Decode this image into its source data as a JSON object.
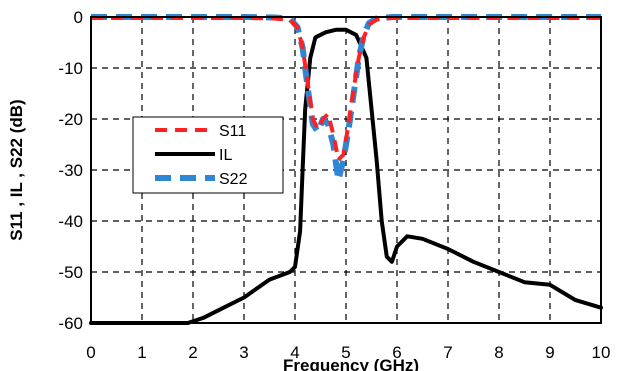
{
  "chart_data": {
    "type": "line",
    "xlabel": "Frequency (GHz)",
    "ylabel": "S11 , IL , S22 (dB)",
    "xlim": [
      0,
      10
    ],
    "ylim": [
      -60,
      0
    ],
    "x_ticks": [
      "0",
      "1",
      "2",
      "3",
      "4",
      "5",
      "6",
      "7",
      "8",
      "9",
      "10"
    ],
    "y_ticks": [
      "0",
      "-10",
      "-20",
      "-30",
      "-40",
      "-50",
      "-60"
    ],
    "grid": true,
    "legend_position": "middle-left",
    "series": [
      {
        "name": "S11",
        "color": "#ff2020",
        "style": "dashed",
        "points": [
          [
            0,
            -0.2
          ],
          [
            1,
            -0.2
          ],
          [
            2,
            -0.2
          ],
          [
            3,
            -0.2
          ],
          [
            3.6,
            -0.3
          ],
          [
            3.9,
            -0.5
          ],
          [
            4.05,
            -2
          ],
          [
            4.15,
            -6
          ],
          [
            4.25,
            -13
          ],
          [
            4.35,
            -20
          ],
          [
            4.45,
            -22
          ],
          [
            4.55,
            -20
          ],
          [
            4.65,
            -19
          ],
          [
            4.75,
            -23
          ],
          [
            4.85,
            -28
          ],
          [
            4.95,
            -27
          ],
          [
            5.05,
            -21
          ],
          [
            5.15,
            -14
          ],
          [
            5.25,
            -8
          ],
          [
            5.35,
            -4
          ],
          [
            5.45,
            -1.5
          ],
          [
            5.6,
            -0.5
          ],
          [
            5.9,
            -0.2
          ],
          [
            6.5,
            -0.2
          ],
          [
            8,
            -0.2
          ],
          [
            10,
            -0.2
          ]
        ]
      },
      {
        "name": "IL",
        "color": "#000000",
        "style": "solid",
        "points": [
          [
            0,
            -60
          ],
          [
            1,
            -60
          ],
          [
            1.9,
            -60
          ],
          [
            2.2,
            -59
          ],
          [
            2.6,
            -57
          ],
          [
            3,
            -55
          ],
          [
            3.5,
            -51.5
          ],
          [
            3.9,
            -50
          ],
          [
            4.0,
            -49
          ],
          [
            4.1,
            -42
          ],
          [
            4.15,
            -30
          ],
          [
            4.2,
            -18
          ],
          [
            4.3,
            -8
          ],
          [
            4.4,
            -4
          ],
          [
            4.6,
            -3
          ],
          [
            4.8,
            -2.5
          ],
          [
            5.0,
            -2.5
          ],
          [
            5.2,
            -3.5
          ],
          [
            5.4,
            -8
          ],
          [
            5.5,
            -18
          ],
          [
            5.6,
            -28
          ],
          [
            5.7,
            -40
          ],
          [
            5.8,
            -47
          ],
          [
            5.9,
            -48
          ],
          [
            6.0,
            -45
          ],
          [
            6.2,
            -43
          ],
          [
            6.5,
            -43.5
          ],
          [
            7,
            -45.5
          ],
          [
            7.5,
            -48
          ],
          [
            8,
            -50
          ],
          [
            8.5,
            -52
          ],
          [
            9,
            -52.5
          ],
          [
            9.5,
            -55.5
          ],
          [
            10,
            -57
          ]
        ]
      },
      {
        "name": "S22",
        "color": "#2e86d4",
        "style": "dashed",
        "points": [
          [
            0,
            0
          ],
          [
            1,
            0
          ],
          [
            2,
            0
          ],
          [
            3,
            0
          ],
          [
            3.6,
            -0.1
          ],
          [
            3.9,
            -0.3
          ],
          [
            4.05,
            -2
          ],
          [
            4.15,
            -6
          ],
          [
            4.25,
            -14
          ],
          [
            4.35,
            -21
          ],
          [
            4.45,
            -22.5
          ],
          [
            4.55,
            -20
          ],
          [
            4.65,
            -21
          ],
          [
            4.75,
            -25
          ],
          [
            4.85,
            -32
          ],
          [
            4.95,
            -28
          ],
          [
            5.05,
            -22
          ],
          [
            5.15,
            -15
          ],
          [
            5.25,
            -8
          ],
          [
            5.35,
            -3.5
          ],
          [
            5.45,
            -1.2
          ],
          [
            5.6,
            -0.3
          ],
          [
            5.9,
            0
          ],
          [
            6.5,
            0
          ],
          [
            8,
            0
          ],
          [
            10,
            0
          ]
        ]
      }
    ]
  }
}
